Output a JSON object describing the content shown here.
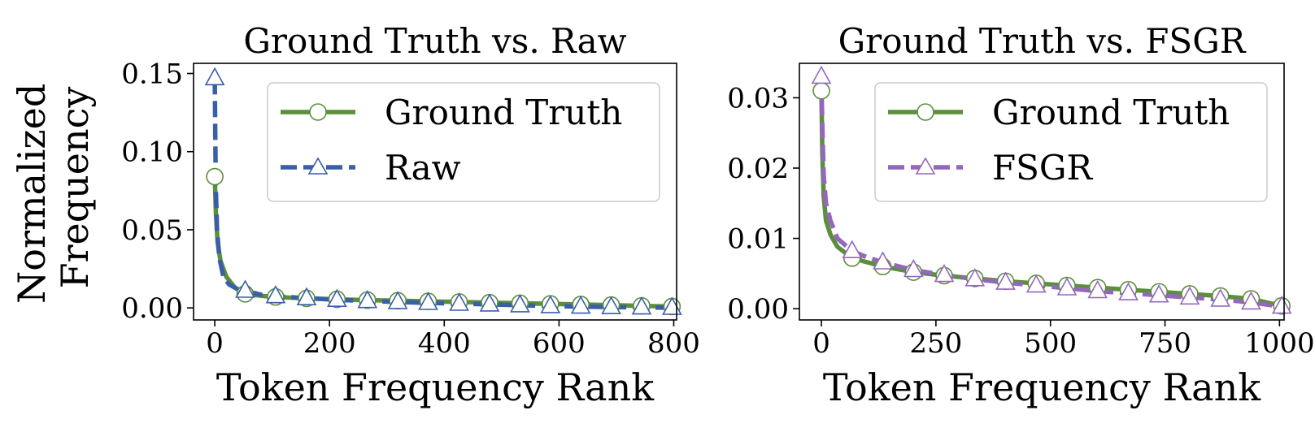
{
  "figure": {
    "ylabel": "Normalized\nFrequency",
    "ylabel_lines": [
      "Normalized",
      "Frequency"
    ]
  },
  "colors": {
    "ground_truth": "#5b8f3c",
    "raw": "#3a5ea8",
    "fsgr": "#9467bd"
  },
  "chart_data": [
    {
      "type": "line",
      "title": "Ground Truth vs. Raw",
      "xlabel": "Token Frequency Rank",
      "ylabel": "Normalized Frequency",
      "xlim": [
        -37,
        805
      ],
      "ylim": [
        -0.0077,
        0.1565
      ],
      "xticks": [
        0,
        200,
        400,
        600,
        800
      ],
      "xtick_labels": [
        "0",
        "200",
        "400",
        "600",
        "800"
      ],
      "yticks": [
        0.0,
        0.05,
        0.1,
        0.15
      ],
      "ytick_labels": [
        "0.00",
        "0.05",
        "0.10",
        "0.15"
      ],
      "grid": false,
      "legend": "top-right",
      "series": [
        {
          "name": "Ground Truth",
          "style": "solid",
          "marker": "circle",
          "color": "#5b8f3c",
          "x": [
            0,
            2,
            5,
            10,
            20,
            35,
            53,
            80,
            106,
            160,
            213,
            266,
            319,
            372,
            426,
            479,
            532,
            585,
            638,
            691,
            744,
            797
          ],
          "y": [
            0.084,
            0.06,
            0.042,
            0.03,
            0.02,
            0.013,
            0.009,
            0.0078,
            0.007,
            0.0061,
            0.0055,
            0.005,
            0.0046,
            0.0042,
            0.0038,
            0.0034,
            0.003,
            0.0026,
            0.0022,
            0.0018,
            0.0013,
            0.0009
          ],
          "marker_x": [
            0,
            53,
            106,
            160,
            213,
            266,
            319,
            372,
            426,
            479,
            532,
            585,
            638,
            691,
            744,
            797
          ],
          "marker_y": [
            0.084,
            0.009,
            0.007,
            0.0061,
            0.0055,
            0.005,
            0.0046,
            0.0042,
            0.0038,
            0.0034,
            0.003,
            0.0026,
            0.0022,
            0.0018,
            0.0013,
            0.0009
          ]
        },
        {
          "name": "Raw",
          "style": "dashed",
          "marker": "triangle",
          "color": "#3a5ea8",
          "x": [
            0,
            1,
            2,
            4,
            8,
            15,
            25,
            40,
            53,
            80,
            106,
            160,
            213,
            266,
            319,
            372,
            426,
            479,
            532,
            585,
            638,
            691,
            744,
            797
          ],
          "y": [
            0.147,
            0.105,
            0.075,
            0.05,
            0.032,
            0.02,
            0.015,
            0.012,
            0.011,
            0.0085,
            0.0075,
            0.0062,
            0.0052,
            0.0044,
            0.0038,
            0.0032,
            0.0027,
            0.0022,
            0.0017,
            0.0012,
            0.0008,
            0.0005,
            0.0003,
            0.0001
          ],
          "marker_x": [
            0,
            53,
            106,
            160,
            213,
            266,
            319,
            372,
            426,
            479,
            532,
            585,
            638,
            691,
            744,
            797
          ],
          "marker_y": [
            0.147,
            0.011,
            0.0075,
            0.0062,
            0.0052,
            0.0044,
            0.0038,
            0.0032,
            0.0027,
            0.0022,
            0.0017,
            0.0012,
            0.0008,
            0.0005,
            0.0003,
            0.0001
          ]
        }
      ]
    },
    {
      "type": "line",
      "title": "Ground Truth vs. FSGR",
      "xlabel": "Token Frequency Rank",
      "ylabel": "",
      "xlim": [
        -48,
        1010
      ],
      "ylim": [
        -0.0016,
        0.0349
      ],
      "xticks": [
        0,
        250,
        500,
        750,
        1000
      ],
      "xtick_labels": [
        "0",
        "250",
        "500",
        "750",
        "1000"
      ],
      "yticks": [
        0.0,
        0.01,
        0.02,
        0.03
      ],
      "ytick_labels": [
        "0.00",
        "0.01",
        "0.02",
        "0.03"
      ],
      "grid": false,
      "legend": "top-right",
      "series": [
        {
          "name": "Ground Truth",
          "style": "solid",
          "marker": "circle",
          "color": "#5b8f3c",
          "x": [
            0,
            2,
            5,
            10,
            20,
            35,
            67,
            100,
            134,
            201,
            268,
            335,
            402,
            469,
            536,
            603,
            670,
            737,
            804,
            871,
            938,
            1005
          ],
          "y": [
            0.031,
            0.022,
            0.016,
            0.0125,
            0.0105,
            0.0088,
            0.0072,
            0.0066,
            0.006,
            0.0052,
            0.0047,
            0.0043,
            0.0039,
            0.0036,
            0.0033,
            0.003,
            0.0027,
            0.0024,
            0.0021,
            0.0018,
            0.0014,
            0.0004
          ],
          "marker_x": [
            0,
            67,
            134,
            201,
            268,
            335,
            402,
            469,
            536,
            603,
            670,
            737,
            804,
            871,
            938,
            1005
          ],
          "marker_y": [
            0.031,
            0.0072,
            0.006,
            0.0052,
            0.0047,
            0.0043,
            0.0039,
            0.0036,
            0.0033,
            0.003,
            0.0027,
            0.0024,
            0.0021,
            0.0018,
            0.0014,
            0.0004
          ]
        },
        {
          "name": "FSGR",
          "style": "dashed",
          "marker": "triangle",
          "color": "#9467bd",
          "x": [
            0,
            2,
            5,
            10,
            20,
            35,
            67,
            100,
            134,
            201,
            268,
            335,
            402,
            469,
            536,
            603,
            670,
            737,
            804,
            871,
            938,
            1005
          ],
          "y": [
            0.033,
            0.026,
            0.019,
            0.015,
            0.0125,
            0.01,
            0.0082,
            0.0073,
            0.0066,
            0.0055,
            0.0048,
            0.0042,
            0.0037,
            0.0033,
            0.0029,
            0.0025,
            0.0022,
            0.0019,
            0.0016,
            0.0013,
            0.0009,
            0.0003
          ],
          "marker_x": [
            0,
            67,
            134,
            201,
            268,
            335,
            402,
            469,
            536,
            603,
            670,
            737,
            804,
            871,
            938,
            1005
          ],
          "marker_y": [
            0.033,
            0.0082,
            0.0066,
            0.0055,
            0.0048,
            0.0042,
            0.0037,
            0.0033,
            0.0029,
            0.0025,
            0.0022,
            0.0019,
            0.0016,
            0.0013,
            0.0009,
            0.0003
          ]
        }
      ]
    }
  ]
}
